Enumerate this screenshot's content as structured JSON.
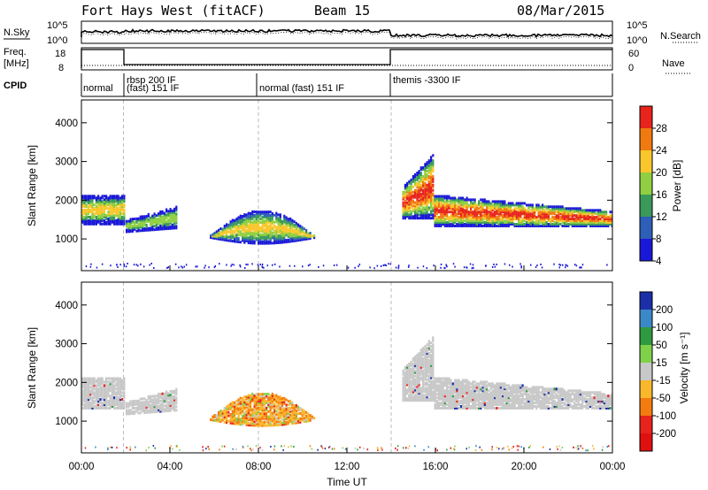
{
  "header": {
    "title": "Fort Hays West (fitACF)",
    "beam": "Beam 15",
    "date": "08/Mar/2015"
  },
  "nsky_panel": {
    "left_label": "N.Sky",
    "left_ticks": [
      "10^5",
      "10^0"
    ],
    "right_label": "N.Search",
    "right_ticks": [
      "10^5",
      "10^0"
    ]
  },
  "freq_panel": {
    "left_label_1": "Freq.",
    "left_label_2": "[MHz]",
    "left_ticks": [
      "18",
      "8"
    ],
    "right_label": "Nave",
    "right_ticks": [
      "60",
      "0"
    ]
  },
  "cpid": {
    "label": "CPID",
    "segments": [
      "normal",
      "rbsp 200 IF",
      "(fast) 151 IF",
      "normal (fast) 151 IF",
      "themis -3300 IF"
    ]
  },
  "x_axis": {
    "title": "Time UT",
    "ticks": [
      "00:00",
      "04:00",
      "08:00",
      "12:00",
      "16:00",
      "20:00",
      "00:00"
    ]
  },
  "chart_data": [
    {
      "type": "heatmap",
      "panel": "power",
      "xlabel": "Time UT",
      "ylabel": "Slant Range [km]",
      "x_range_hours": [
        0,
        24
      ],
      "y_range_km": [
        180,
        4590
      ],
      "y_ticks": [
        1000,
        2000,
        3000,
        4000
      ],
      "colorbar": {
        "title": "Power [dB]",
        "ticks": [
          "28",
          "24",
          "20",
          "16",
          "12",
          "8",
          "4"
        ],
        "colors": [
          "#e8231c",
          "#f07a10",
          "#f9c72b",
          "#8fcf41",
          "#3a9a5a",
          "#2e5fb8",
          "#1a18d8"
        ]
      },
      "regions": [
        {
          "t": [
            0.0,
            1.9
          ],
          "r": [
            1350,
            2100
          ],
          "level": "medium-high"
        },
        {
          "t": [
            2.0,
            4.3
          ],
          "r": [
            1150,
            1800
          ],
          "level": "medium"
        },
        {
          "t": [
            5.8,
            10.5
          ],
          "r": [
            850,
            1700
          ],
          "level": "low-medium"
        },
        {
          "t": [
            14.5,
            24.0
          ],
          "r": [
            1300,
            3300
          ],
          "level": "high"
        }
      ]
    },
    {
      "type": "heatmap",
      "panel": "velocity",
      "xlabel": "Time UT",
      "ylabel": "Slant Range [km]",
      "x_range_hours": [
        0,
        24
      ],
      "y_range_km": [
        180,
        4590
      ],
      "y_ticks": [
        1000,
        2000,
        3000,
        4000
      ],
      "colorbar": {
        "title": "Velocity [m s⁻¹]",
        "ticks": [
          "200",
          "100",
          "50",
          "15",
          "-15",
          "-50",
          "-100",
          "-200"
        ],
        "colors": [
          "#1b2fa8",
          "#3b88c8",
          "#2e9a3f",
          "#7fd14a",
          "#c8c8c8",
          "#f9b72c",
          "#f47b10",
          "#e8231c",
          "#e01010"
        ]
      },
      "regions": [
        {
          "t": [
            0.0,
            1.9
          ],
          "r": [
            1300,
            2100
          ],
          "velocity": "ground scatter"
        },
        {
          "t": [
            2.0,
            4.3
          ],
          "r": [
            1150,
            1800
          ],
          "velocity": "ground scatter"
        },
        {
          "t": [
            5.8,
            10.5
          ],
          "r": [
            850,
            1700
          ],
          "velocity": "-15 to -100"
        },
        {
          "t": [
            14.5,
            24.0
          ],
          "r": [
            1300,
            3300
          ],
          "velocity": "ground scatter"
        }
      ]
    }
  ]
}
